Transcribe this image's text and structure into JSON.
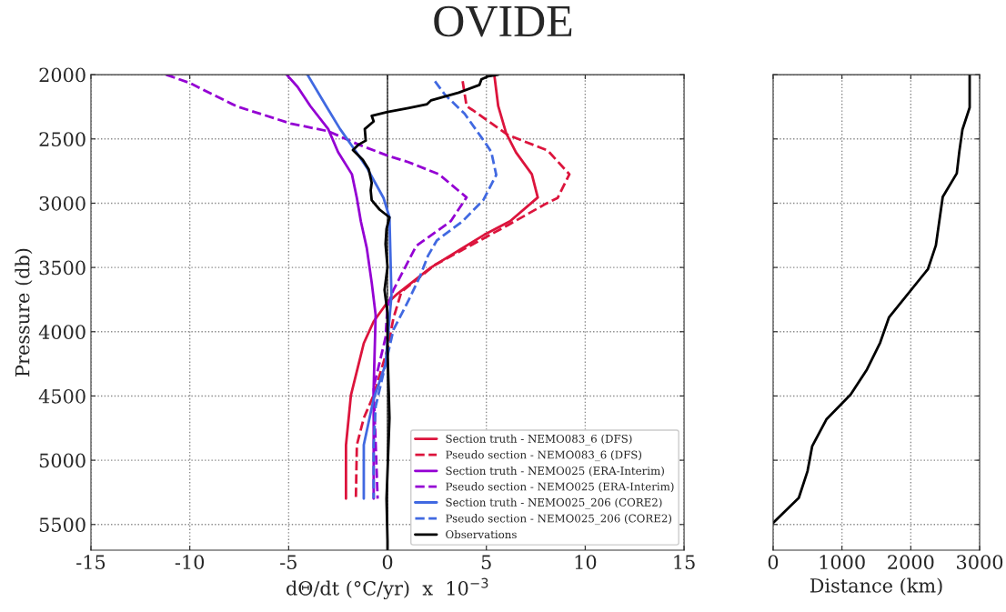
{
  "chart_data": [
    {
      "type": "line",
      "title": "OVIDE",
      "xlabel": "dΘ/dt (°C/yr)  x  10$^{−3}$",
      "ylabel": "Pressure (db)",
      "xlim": [
        -15,
        15
      ],
      "xticks": [
        -15,
        -10,
        -5,
        0,
        5,
        10,
        15
      ],
      "ylim": [
        5700,
        2000
      ],
      "yticks": [
        2000,
        2500,
        3000,
        3500,
        4000,
        4500,
        5000,
        5500
      ],
      "grid": true,
      "legend": "bottom right",
      "marker": "none",
      "ref_lines": [
        {
          "axis": "x",
          "value": 0,
          "color": "#000000"
        }
      ],
      "series": [
        {
          "name": "Section truth - NEMO083_6 (DFS)",
          "color": "#dc143c",
          "line_style": "solid",
          "x": [
            5.4,
            5.6,
            6.0,
            6.5,
            7.3,
            7.6,
            6.2,
            4.9,
            2.2,
            0.5,
            -0.1,
            -0.7,
            -1.2,
            -1.85,
            -2.1,
            -2.1
          ],
          "values": [
            2000,
            2245,
            2455,
            2605,
            2775,
            2955,
            3140,
            3245,
            3500,
            3705,
            3791,
            3920,
            4090,
            4494,
            4881,
            5299
          ]
        },
        {
          "name": "Pseudo section - NEMO083_6 (DFS)",
          "color": "#dc143c",
          "line_style": "dashed",
          "x": [
            3.8,
            4.0,
            4.3,
            6.1,
            8.1,
            9.2,
            8.6,
            8.0,
            6.1,
            2.4,
            0.7,
            0.3,
            0.0,
            -0.7,
            -1.2,
            -1.55,
            -1.6
          ],
          "values": [
            2051,
            2245,
            2275,
            2470,
            2590,
            2775,
            2960,
            3005,
            3170,
            3480,
            3690,
            3895,
            4134,
            4493,
            4672,
            4881,
            5299
          ]
        },
        {
          "name": "Section truth - NEMO025 (ERA-Interim)",
          "color": "#9400d3",
          "line_style": "solid",
          "x": [
            -5.1,
            -4.55,
            -3.9,
            -3.0,
            -2.5,
            -1.8,
            -1.55,
            -1.35,
            -1.05,
            -0.8,
            -0.6,
            -0.7,
            -0.7
          ],
          "values": [
            2000,
            2095,
            2245,
            2423,
            2602,
            2775,
            2960,
            3140,
            3348,
            3617,
            3870,
            4433,
            5299
          ]
        },
        {
          "name": "Pseudo section - NEMO025 (ERA-Interim)",
          "color": "#9400d3",
          "line_style": "dashed",
          "x": [
            -11.2,
            -10.0,
            -7.65,
            -4.9,
            -3.0,
            -1.45,
            0.0,
            1.05,
            2.6,
            4.0,
            3.2,
            1.45,
            0.3,
            0.0,
            -0.1,
            -0.7,
            -0.5
          ],
          "values": [
            2000,
            2065,
            2245,
            2380,
            2440,
            2545,
            2630,
            2680,
            2775,
            2955,
            3140,
            3333,
            3675,
            3800,
            4045,
            4433,
            5299
          ]
        },
        {
          "name": "Section truth - NEMO025_206 (CORE2)",
          "color": "#4169e1",
          "line_style": "solid",
          "x": [
            -4.05,
            -3.1,
            -2.4,
            -1.65,
            -1.05,
            -0.2,
            0.1,
            0.2,
            -0.1,
            -0.7,
            -1.2,
            -1.2
          ],
          "values": [
            2000,
            2245,
            2423,
            2587,
            2722,
            2960,
            3110,
            3720,
            4254,
            4522,
            4881,
            5299
          ]
        },
        {
          "name": "Pseudo section - NEMO025_206 (CORE2)",
          "color": "#4169e1",
          "line_style": "dashed",
          "x": [
            2.4,
            2.9,
            3.9,
            5.0,
            5.25,
            5.5,
            4.85,
            3.8,
            2.5,
            2.05,
            1.65,
            1.05,
            0.3,
            -0.1,
            -0.6,
            -0.7,
            -0.7
          ],
          "values": [
            2051,
            2155,
            2304,
            2543,
            2602,
            2780,
            2975,
            3140,
            3289,
            3408,
            3567,
            3761,
            3985,
            4254,
            4582,
            4881,
            5299
          ]
        },
        {
          "name": "Observations",
          "color": "#000000",
          "line_style": "solid",
          "x": [
            5.6,
            5.1,
            4.75,
            4.65,
            3.6,
            2.2,
            2.0,
            1.05,
            0.0,
            -0.8,
            -0.7,
            -1.15,
            -1.1,
            -1.45,
            -1.75,
            -1.25,
            -0.95,
            -0.8,
            -0.85,
            -0.8,
            -0.4,
            0.1,
            -0.05,
            -0.1,
            0.0,
            -0.15,
            0.0,
            0.0,
            0.1,
            -0.05,
            0.0,
            0.0
          ],
          "values": [
            2000,
            2012,
            2036,
            2080,
            2140,
            2200,
            2230,
            2260,
            2290,
            2320,
            2364,
            2423,
            2513,
            2543,
            2587,
            2662,
            2737,
            2841,
            2901,
            2976,
            3050,
            3110,
            3200,
            3318,
            3497,
            3675,
            3853,
            4134,
            4672,
            5299,
            5627,
            5700
          ]
        }
      ]
    },
    {
      "type": "line",
      "xlabel": "Distance (km)",
      "xlim": [
        0,
        3000
      ],
      "xticks": [
        0,
        1000,
        2000,
        3000
      ],
      "ylim": [
        5700,
        2000
      ],
      "yticks": [
        2000,
        2500,
        3000,
        3500,
        4000,
        4500,
        5000,
        5500
      ],
      "tick_labels": "x",
      "grid": true,
      "marker": "none",
      "series": [
        {
          "color": "#000000",
          "line_style": "solid",
          "x": [
            2855,
            2855,
            2750,
            2705,
            2668,
            2464,
            2364,
            2250,
            1682,
            1555,
            1364,
            1127,
            773,
            568,
            500,
            373,
            0
          ],
          "values": [
            2000,
            2256,
            2427,
            2598,
            2768,
            2951,
            3329,
            3512,
            3890,
            4085,
            4293,
            4488,
            4683,
            4890,
            5085,
            5293,
            5488
          ]
        }
      ]
    }
  ]
}
